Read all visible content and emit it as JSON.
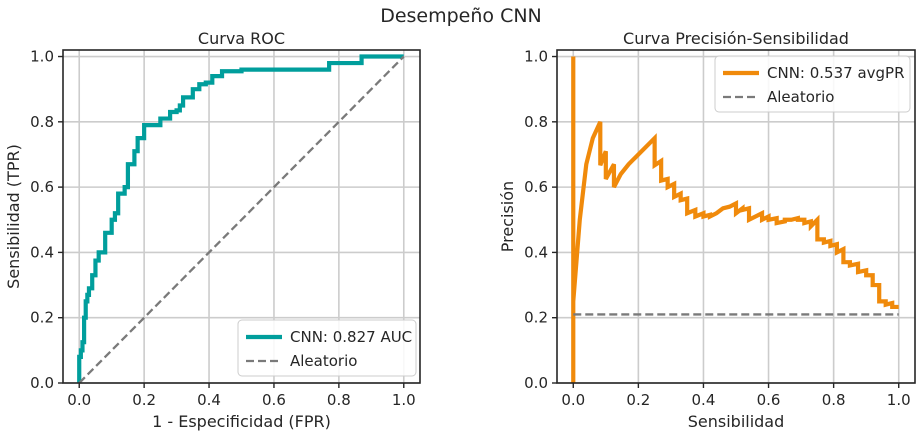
{
  "suptitle": "Desempeño CNN",
  "chart_data": [
    {
      "type": "line",
      "title": "Curva ROC",
      "xlabel": "1 - Especificidad (FPR)",
      "ylabel": "Sensibilidad (TPR)",
      "xlim": [
        -0.05,
        1.05
      ],
      "ylim": [
        0.0,
        1.02
      ],
      "xticks": [
        0.0,
        0.2,
        0.4,
        0.6,
        0.8,
        1.0
      ],
      "yticks": [
        0.0,
        0.2,
        0.4,
        0.6,
        0.8,
        1.0
      ],
      "xtick_labels": [
        "0.0",
        "0.2",
        "0.4",
        "0.6",
        "0.8",
        "1.0"
      ],
      "ytick_labels": [
        "0.0",
        "0.2",
        "0.4",
        "0.6",
        "0.8",
        "1.0"
      ],
      "grid": true,
      "legend_position": "lower-right",
      "series": [
        {
          "name": "CNN: 0.827 AUC",
          "color": "#009e9c",
          "style": "solid",
          "x": [
            0.0,
            0.0,
            0.005,
            0.005,
            0.01,
            0.01,
            0.015,
            0.015,
            0.02,
            0.02,
            0.025,
            0.025,
            0.03,
            0.03,
            0.04,
            0.04,
            0.05,
            0.05,
            0.06,
            0.06,
            0.08,
            0.08,
            0.1,
            0.1,
            0.11,
            0.11,
            0.12,
            0.12,
            0.14,
            0.14,
            0.15,
            0.15,
            0.17,
            0.17,
            0.18,
            0.18,
            0.2,
            0.2,
            0.25,
            0.25,
            0.28,
            0.28,
            0.3,
            0.3,
            0.31,
            0.31,
            0.32,
            0.32,
            0.35,
            0.35,
            0.37,
            0.37,
            0.39,
            0.39,
            0.41,
            0.41,
            0.44,
            0.44,
            0.5,
            0.5,
            0.77,
            0.77,
            0.87,
            0.87,
            1.0
          ],
          "y": [
            0.0,
            0.08,
            0.08,
            0.1,
            0.1,
            0.125,
            0.125,
            0.2,
            0.2,
            0.25,
            0.25,
            0.27,
            0.27,
            0.29,
            0.29,
            0.33,
            0.33,
            0.375,
            0.375,
            0.4,
            0.4,
            0.46,
            0.46,
            0.5,
            0.5,
            0.52,
            0.52,
            0.58,
            0.58,
            0.6,
            0.6,
            0.67,
            0.67,
            0.71,
            0.71,
            0.75,
            0.75,
            0.79,
            0.79,
            0.81,
            0.81,
            0.83,
            0.83,
            0.835,
            0.835,
            0.85,
            0.85,
            0.875,
            0.875,
            0.9,
            0.9,
            0.915,
            0.915,
            0.92,
            0.92,
            0.94,
            0.94,
            0.955,
            0.955,
            0.96,
            0.96,
            0.98,
            0.98,
            1.0,
            1.0
          ]
        },
        {
          "name": "Aleatorio",
          "color": "#7a7a7a",
          "style": "dashed",
          "x": [
            0.0,
            1.0
          ],
          "y": [
            0.0,
            1.0
          ]
        }
      ]
    },
    {
      "type": "line",
      "title": "Curva Precisión-Sensibilidad",
      "xlabel": "Sensibilidad",
      "ylabel": "Precisión",
      "xlim": [
        -0.05,
        1.05
      ],
      "ylim": [
        0.0,
        1.02
      ],
      "xticks": [
        0.0,
        0.2,
        0.4,
        0.6,
        0.8,
        1.0
      ],
      "yticks": [
        0.0,
        0.2,
        0.4,
        0.6,
        0.8,
        1.0
      ],
      "xtick_labels": [
        "0.0",
        "0.2",
        "0.4",
        "0.6",
        "0.8",
        "1.0"
      ],
      "ytick_labels": [
        "0.0",
        "0.2",
        "0.4",
        "0.6",
        "0.8",
        "1.0"
      ],
      "grid": true,
      "legend_position": "top-right",
      "series": [
        {
          "name": "CNN: 0.537 avgPR",
          "color": "#f08a0b",
          "style": "solid",
          "x": [
            0.0,
            0.0,
            0.0,
            0.02,
            0.04,
            0.06,
            0.083,
            0.083,
            0.1,
            0.1,
            0.125,
            0.125,
            0.146,
            0.17,
            0.2,
            0.25,
            0.25,
            0.27,
            0.27,
            0.29,
            0.29,
            0.31,
            0.31,
            0.33,
            0.33,
            0.35,
            0.35,
            0.375,
            0.375,
            0.4,
            0.4,
            0.42,
            0.42,
            0.44,
            0.46,
            0.48,
            0.5,
            0.5,
            0.52,
            0.52,
            0.54,
            0.54,
            0.56,
            0.58,
            0.58,
            0.6,
            0.6,
            0.625,
            0.625,
            0.65,
            0.65,
            0.67,
            0.67,
            0.69,
            0.69,
            0.71,
            0.71,
            0.73,
            0.73,
            0.75,
            0.75,
            0.77,
            0.77,
            0.79,
            0.79,
            0.81,
            0.81,
            0.83,
            0.83,
            0.85,
            0.85,
            0.875,
            0.875,
            0.9,
            0.9,
            0.92,
            0.92,
            0.94,
            0.94,
            0.96,
            0.96,
            0.98,
            0.98,
            1.0
          ],
          "y": [
            0.0,
            1.0,
            0.25,
            0.5,
            0.67,
            0.75,
            0.8,
            0.667,
            0.71,
            0.625,
            0.67,
            0.6,
            0.64,
            0.67,
            0.7,
            0.75,
            0.667,
            0.68,
            0.62,
            0.625,
            0.6,
            0.61,
            0.57,
            0.58,
            0.56,
            0.565,
            0.52,
            0.53,
            0.51,
            0.52,
            0.51,
            0.515,
            0.51,
            0.52,
            0.535,
            0.54,
            0.55,
            0.52,
            0.535,
            0.53,
            0.535,
            0.5,
            0.51,
            0.52,
            0.5,
            0.51,
            0.5,
            0.505,
            0.49,
            0.495,
            0.5,
            0.5,
            0.5,
            0.505,
            0.5,
            0.5,
            0.49,
            0.495,
            0.48,
            0.5,
            0.44,
            0.44,
            0.43,
            0.435,
            0.42,
            0.425,
            0.4,
            0.41,
            0.37,
            0.37,
            0.36,
            0.365,
            0.34,
            0.345,
            0.33,
            0.33,
            0.3,
            0.3,
            0.25,
            0.25,
            0.24,
            0.245,
            0.233,
            0.233
          ]
        },
        {
          "name": "Aleatorio",
          "color": "#7a7a7a",
          "style": "dashed",
          "x": [
            0.0,
            1.0
          ],
          "y": [
            0.21,
            0.21
          ]
        }
      ]
    }
  ]
}
